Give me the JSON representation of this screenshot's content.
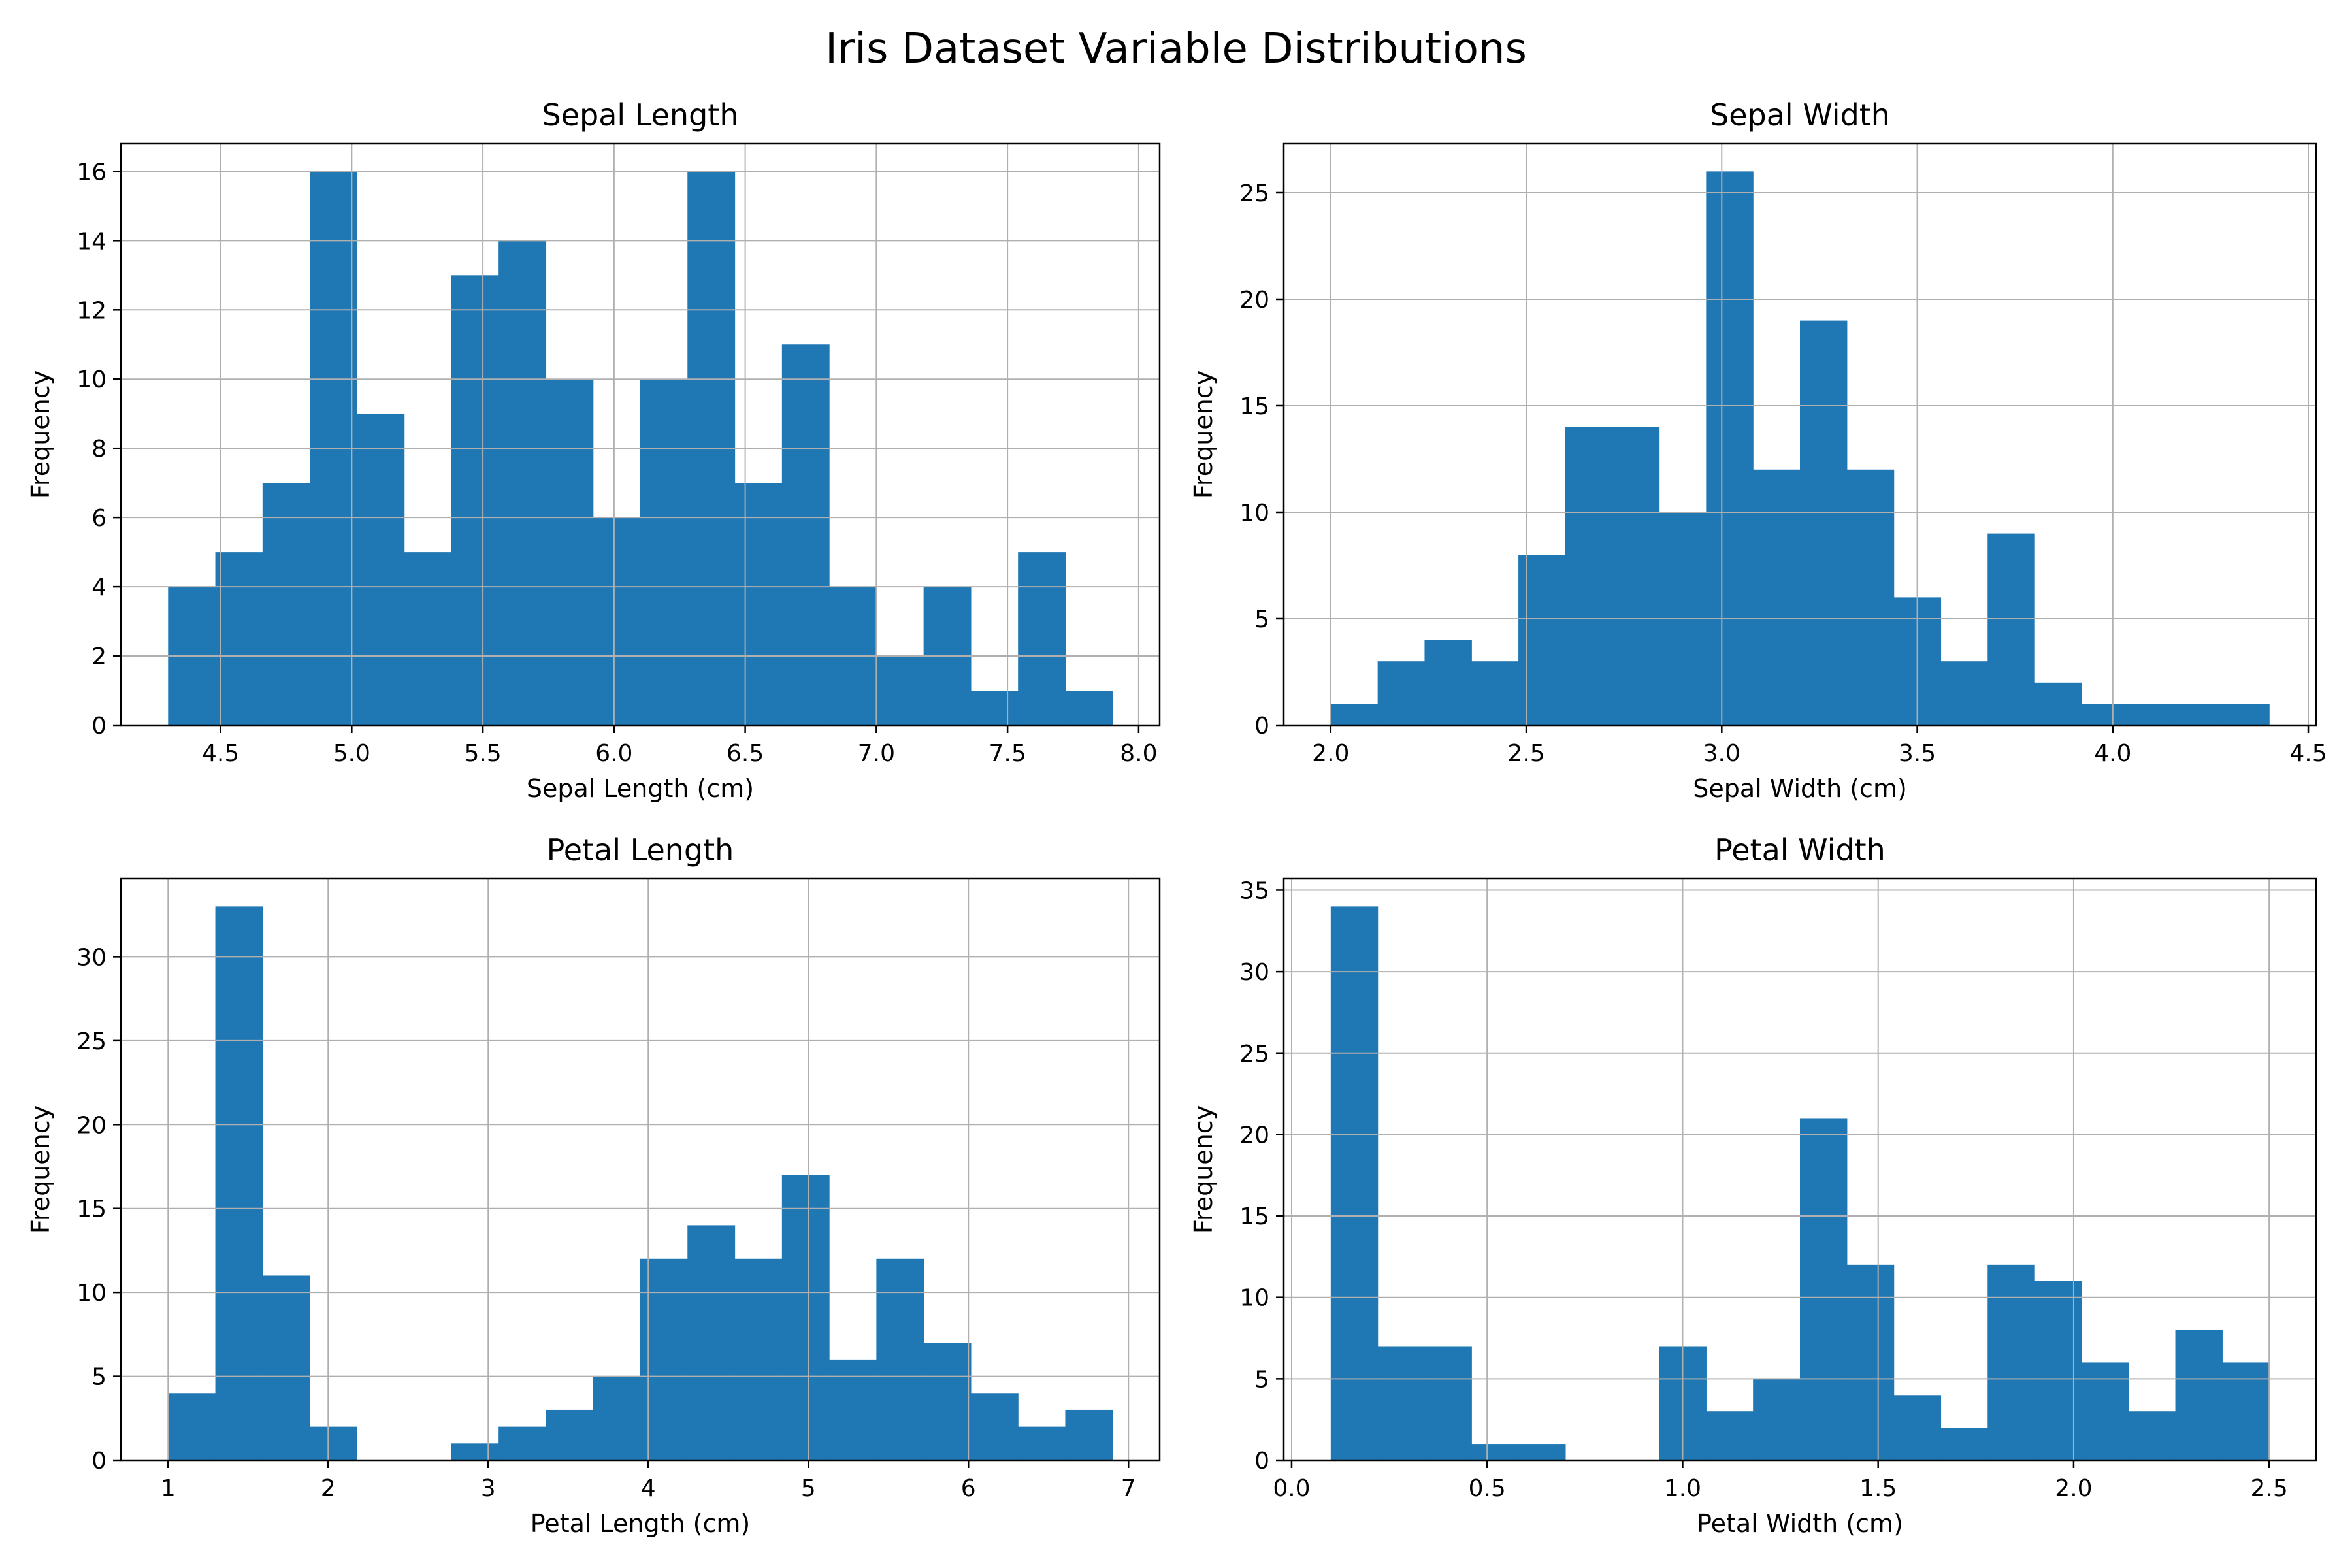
{
  "figure": {
    "title": "Iris Dataset Variable Distributions",
    "bar_color": "#1f77b4",
    "grid_color": "#b0b0b0"
  },
  "chart_data": [
    {
      "type": "bar",
      "title": "Sepal Length",
      "xlabel": "Sepal Length (cm)",
      "ylabel": "Frequency",
      "grid": true,
      "bin_start": 4.3,
      "bin_end": 7.9,
      "values": [
        4,
        5,
        7,
        16,
        9,
        5,
        13,
        14,
        10,
        6,
        10,
        16,
        7,
        11,
        4,
        2,
        4,
        1,
        5,
        1
      ],
      "xlim": [
        4.12,
        8.08
      ],
      "ylim": [
        0,
        16.8
      ],
      "xticks": [
        {
          "value": 4.5,
          "label": "4.5"
        },
        {
          "value": 5.0,
          "label": "5.0"
        },
        {
          "value": 5.5,
          "label": "5.5"
        },
        {
          "value": 6.0,
          "label": "6.0"
        },
        {
          "value": 6.5,
          "label": "6.5"
        },
        {
          "value": 7.0,
          "label": "7.0"
        },
        {
          "value": 7.5,
          "label": "7.5"
        },
        {
          "value": 8.0,
          "label": "8.0"
        }
      ],
      "yticks": [
        {
          "value": 0,
          "label": "0"
        },
        {
          "value": 2,
          "label": "2"
        },
        {
          "value": 4,
          "label": "4"
        },
        {
          "value": 6,
          "label": "6"
        },
        {
          "value": 8,
          "label": "8"
        },
        {
          "value": 10,
          "label": "10"
        },
        {
          "value": 12,
          "label": "12"
        },
        {
          "value": 14,
          "label": "14"
        },
        {
          "value": 16,
          "label": "16"
        }
      ]
    },
    {
      "type": "bar",
      "title": "Sepal Width",
      "xlabel": "Sepal Width (cm)",
      "ylabel": "Frequency",
      "grid": true,
      "bin_start": 2.0,
      "bin_end": 4.4,
      "values": [
        1,
        3,
        4,
        3,
        8,
        14,
        14,
        10,
        26,
        12,
        19,
        12,
        6,
        3,
        9,
        2,
        1,
        1,
        1,
        1
      ],
      "xlim": [
        1.88,
        4.52
      ],
      "ylim": [
        0,
        27.3
      ],
      "xticks": [
        {
          "value": 2.0,
          "label": "2.0"
        },
        {
          "value": 2.5,
          "label": "2.5"
        },
        {
          "value": 3.0,
          "label": "3.0"
        },
        {
          "value": 3.5,
          "label": "3.5"
        },
        {
          "value": 4.0,
          "label": "4.0"
        },
        {
          "value": 4.5,
          "label": "4.5"
        }
      ],
      "yticks": [
        {
          "value": 0,
          "label": "0"
        },
        {
          "value": 5,
          "label": "5"
        },
        {
          "value": 10,
          "label": "10"
        },
        {
          "value": 15,
          "label": "15"
        },
        {
          "value": 20,
          "label": "20"
        },
        {
          "value": 25,
          "label": "25"
        }
      ]
    },
    {
      "type": "bar",
      "title": "Petal Length",
      "xlabel": "Petal Length (cm)",
      "ylabel": "Frequency",
      "grid": true,
      "bin_start": 1.0,
      "bin_end": 6.9,
      "values": [
        4,
        33,
        11,
        2,
        0,
        0,
        1,
        2,
        3,
        5,
        12,
        14,
        12,
        17,
        6,
        12,
        7,
        4,
        2,
        3
      ],
      "xlim": [
        0.705,
        7.195
      ],
      "ylim": [
        0,
        34.65
      ],
      "xticks": [
        {
          "value": 1,
          "label": "1"
        },
        {
          "value": 2,
          "label": "2"
        },
        {
          "value": 3,
          "label": "3"
        },
        {
          "value": 4,
          "label": "4"
        },
        {
          "value": 5,
          "label": "5"
        },
        {
          "value": 6,
          "label": "6"
        },
        {
          "value": 7,
          "label": "7"
        }
      ],
      "yticks": [
        {
          "value": 0,
          "label": "0"
        },
        {
          "value": 5,
          "label": "5"
        },
        {
          "value": 10,
          "label": "10"
        },
        {
          "value": 15,
          "label": "15"
        },
        {
          "value": 20,
          "label": "20"
        },
        {
          "value": 25,
          "label": "25"
        },
        {
          "value": 30,
          "label": "30"
        }
      ]
    },
    {
      "type": "bar",
      "title": "Petal Width",
      "xlabel": "Petal Width (cm)",
      "ylabel": "Frequency",
      "grid": true,
      "bin_start": 0.1,
      "bin_end": 2.5,
      "values": [
        34,
        7,
        7,
        1,
        1,
        0,
        0,
        7,
        3,
        5,
        21,
        12,
        4,
        2,
        12,
        11,
        6,
        3,
        8,
        6
      ],
      "xlim": [
        -0.02,
        2.62
      ],
      "ylim": [
        0,
        35.7
      ],
      "xticks": [
        {
          "value": 0.0,
          "label": "0.0"
        },
        {
          "value": 0.5,
          "label": "0.5"
        },
        {
          "value": 1.0,
          "label": "1.0"
        },
        {
          "value": 1.5,
          "label": "1.5"
        },
        {
          "value": 2.0,
          "label": "2.0"
        },
        {
          "value": 2.5,
          "label": "2.5"
        }
      ],
      "yticks": [
        {
          "value": 0,
          "label": "0"
        },
        {
          "value": 5,
          "label": "5"
        },
        {
          "value": 10,
          "label": "10"
        },
        {
          "value": 15,
          "label": "15"
        },
        {
          "value": 20,
          "label": "20"
        },
        {
          "value": 25,
          "label": "25"
        },
        {
          "value": 30,
          "label": "30"
        },
        {
          "value": 35,
          "label": "35"
        }
      ]
    }
  ]
}
